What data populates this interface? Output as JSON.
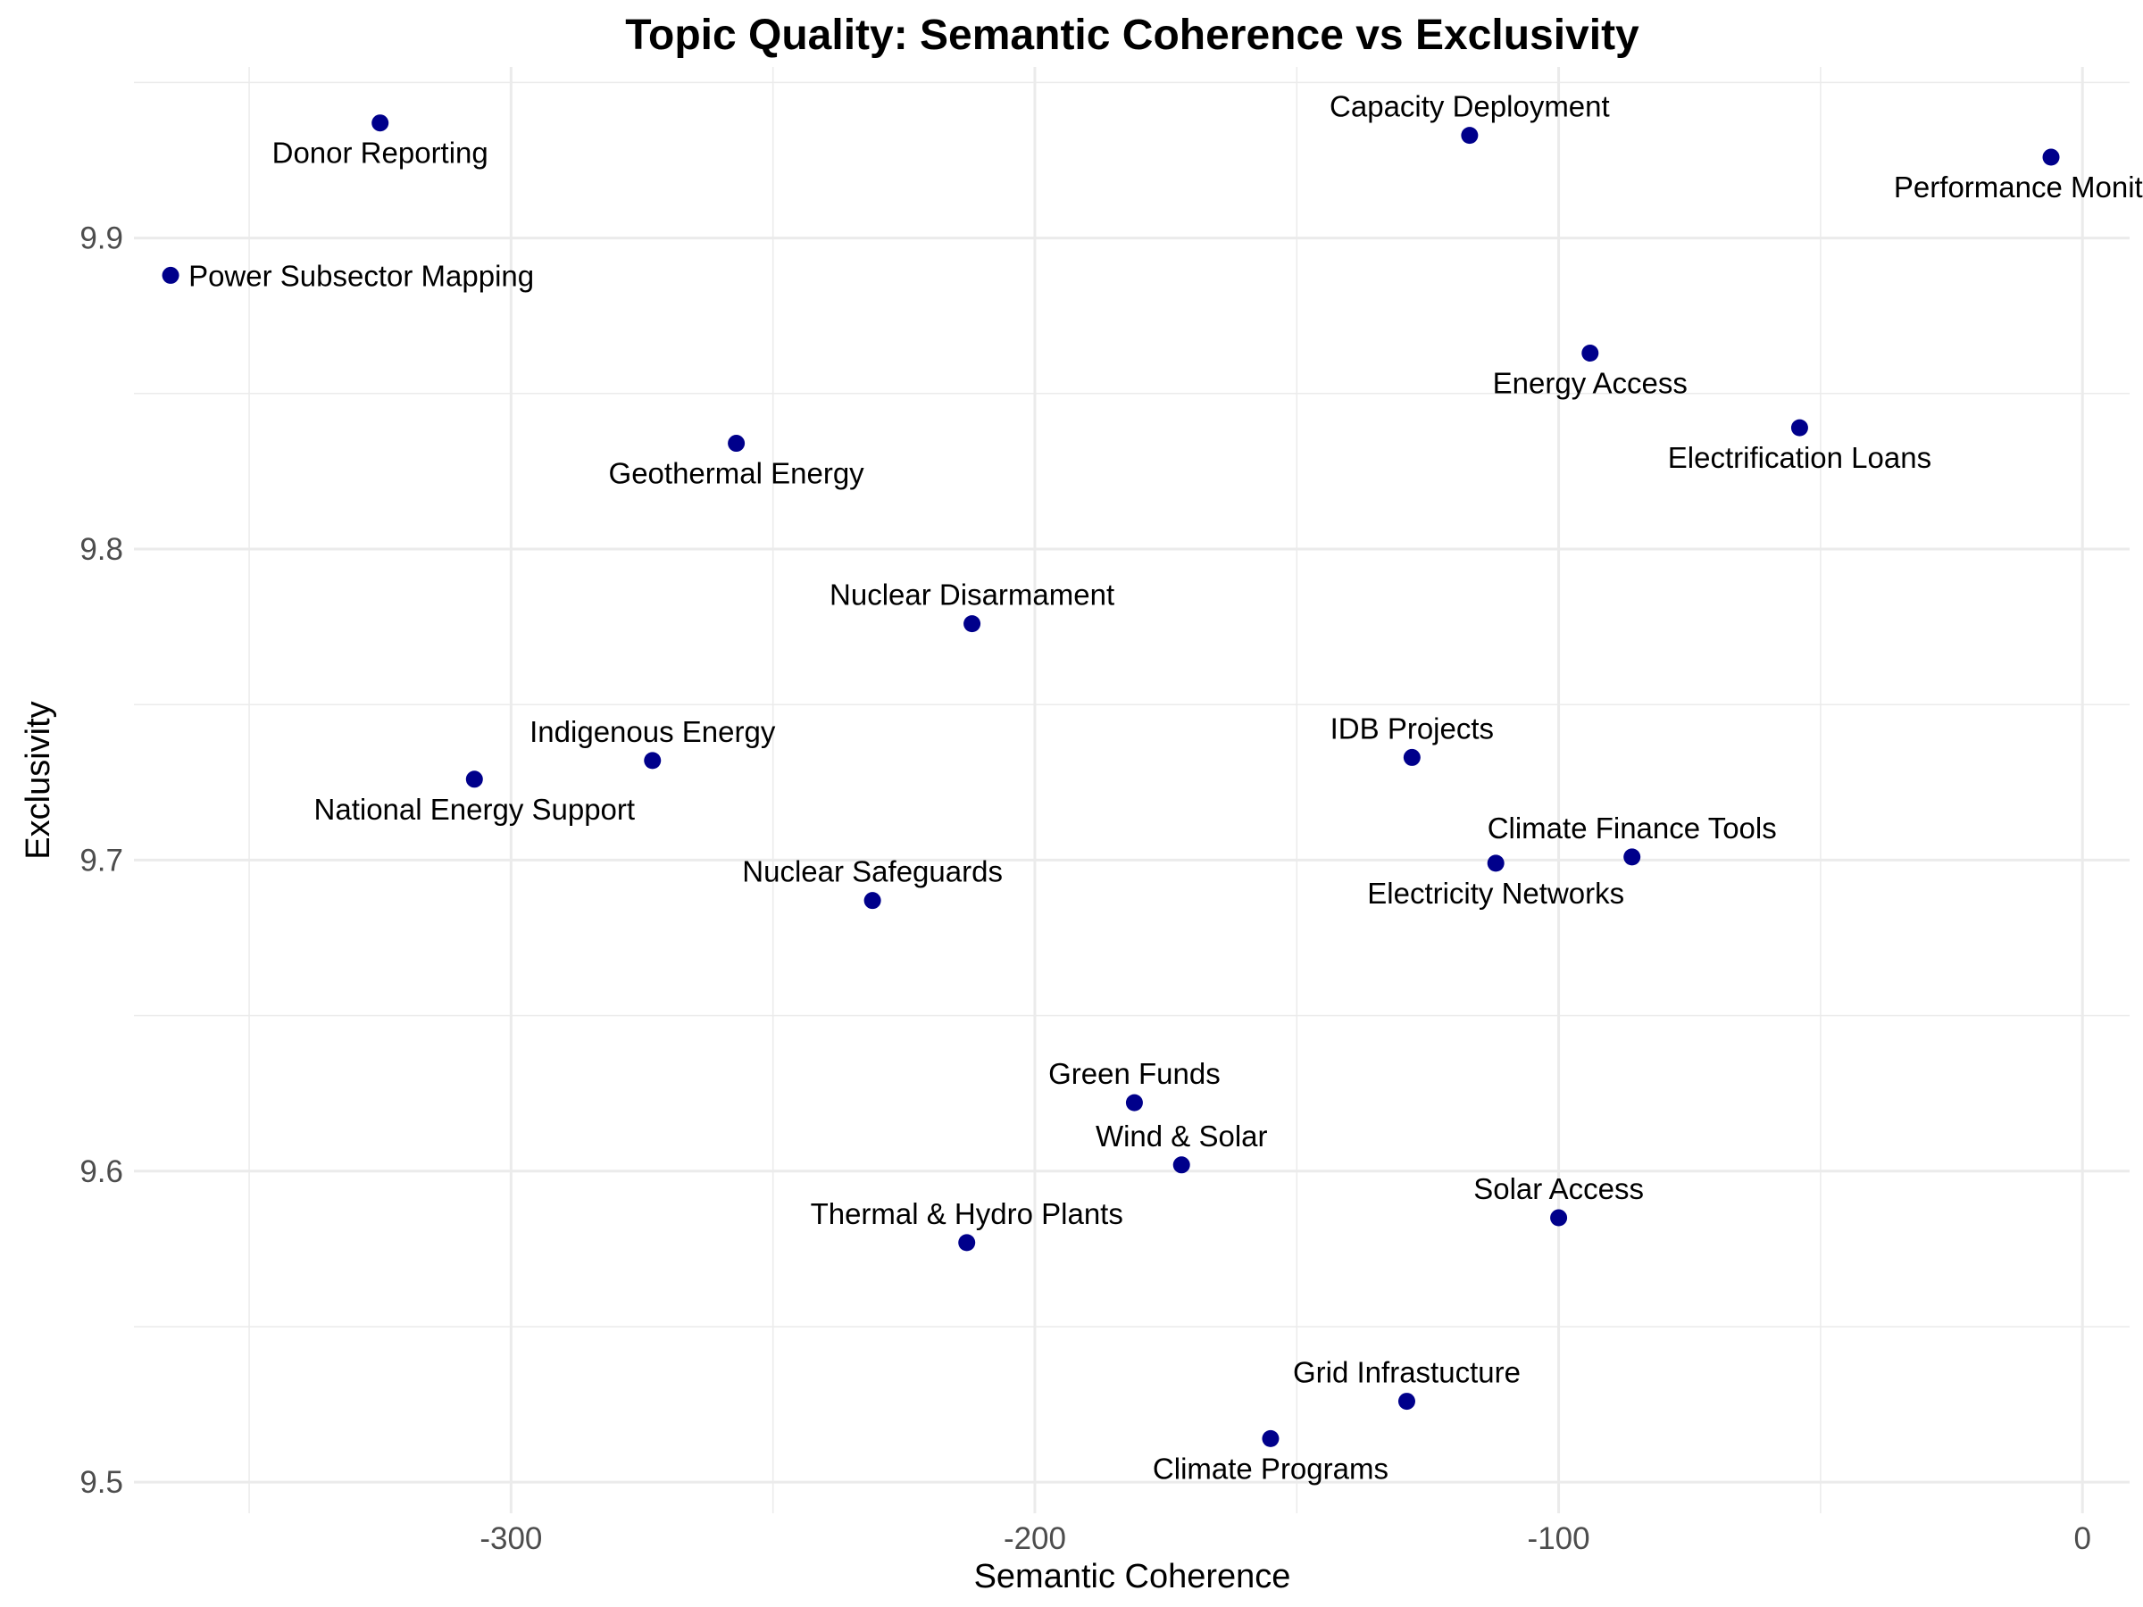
{
  "chart_data": {
    "type": "scatter",
    "title": "Topic Quality: Semantic Coherence vs Exclusivity",
    "xlabel": "Semantic Coherence",
    "ylabel": "Exclusivity",
    "xlim": [
      -372,
      9
    ],
    "ylim": [
      9.49,
      9.955
    ],
    "x_ticks": [
      -300,
      -200,
      -100,
      0
    ],
    "x_tick_labels": [
      "-300",
      "-200",
      "-100",
      "0"
    ],
    "x_minor_ticks": [
      -350,
      -250,
      -150,
      -50
    ],
    "y_ticks": [
      9.5,
      9.6,
      9.7,
      9.8,
      9.9
    ],
    "y_tick_labels": [
      "9.5",
      "9.6",
      "9.7",
      "9.8",
      "9.9"
    ],
    "y_minor_ticks": [
      9.55,
      9.65,
      9.75,
      9.85,
      9.95
    ],
    "grid": true,
    "legend": "none",
    "point_color": "#00008b",
    "points": [
      {
        "label": "Donor Reporting",
        "x": -325,
        "y": 9.937,
        "label_pos": "below"
      },
      {
        "label": "Power Subsector Mapping",
        "x": -365,
        "y": 9.888,
        "label_pos": "right"
      },
      {
        "label": "Capacity Deployment",
        "x": -117,
        "y": 9.933,
        "label_pos": "above"
      },
      {
        "label": "Performance Monitoring",
        "x": -6,
        "y": 9.926,
        "label_pos": "below"
      },
      {
        "label": "Energy Access",
        "x": -94,
        "y": 9.863,
        "label_pos": "below"
      },
      {
        "label": "Electrification Loans",
        "x": -54,
        "y": 9.839,
        "label_pos": "below"
      },
      {
        "label": "Geothermal Energy",
        "x": -257,
        "y": 9.834,
        "label_pos": "below"
      },
      {
        "label": "Nuclear Disarmament",
        "x": -212,
        "y": 9.776,
        "label_pos": "above"
      },
      {
        "label": "Indigenous Energy",
        "x": -273,
        "y": 9.732,
        "label_pos": "above"
      },
      {
        "label": "National Energy Support",
        "x": -307,
        "y": 9.726,
        "label_pos": "below"
      },
      {
        "label": "IDB Projects",
        "x": -128,
        "y": 9.733,
        "label_pos": "above"
      },
      {
        "label": "Climate Finance Tools",
        "x": -86,
        "y": 9.701,
        "label_pos": "above"
      },
      {
        "label": "Electricity Networks",
        "x": -112,
        "y": 9.699,
        "label_pos": "below"
      },
      {
        "label": "Nuclear Safeguards",
        "x": -231,
        "y": 9.687,
        "label_pos": "above"
      },
      {
        "label": "Green Funds",
        "x": -181,
        "y": 9.622,
        "label_pos": "above"
      },
      {
        "label": "Wind & Solar",
        "x": -172,
        "y": 9.602,
        "label_pos": "above"
      },
      {
        "label": "Solar Access",
        "x": -100,
        "y": 9.585,
        "label_pos": "above"
      },
      {
        "label": "Thermal & Hydro Plants",
        "x": -213,
        "y": 9.577,
        "label_pos": "above"
      },
      {
        "label": "Grid Infrastucture",
        "x": -129,
        "y": 9.526,
        "label_pos": "above"
      },
      {
        "label": "Climate Programs",
        "x": -155,
        "y": 9.514,
        "label_pos": "below"
      }
    ]
  }
}
